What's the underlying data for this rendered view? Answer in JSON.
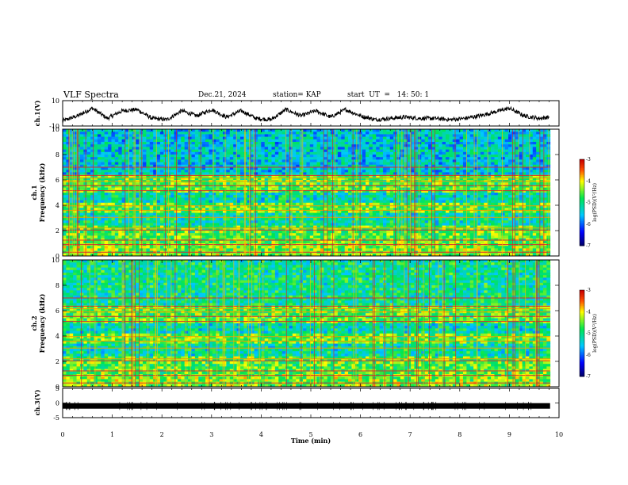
{
  "header": {
    "title": "VLF Spectra",
    "date": "Dec.21, 2024",
    "station": "station= KAP",
    "start_ut": "start  UT  =   14: 50: 1"
  },
  "chart_data": [
    {
      "type": "line",
      "name": "ch1-waveform",
      "ylabel": "ch.1(V)",
      "ylim": [
        -10,
        10
      ],
      "yticks": [
        "10",
        "-10"
      ],
      "xlim": [
        0,
        10
      ],
      "envelope": {
        "x": [
          0,
          0.3,
          0.6,
          0.9,
          1.2,
          1.5,
          1.8,
          2.1,
          2.4,
          2.7,
          3.0,
          3.3,
          3.6,
          3.9,
          4.2,
          4.5,
          4.8,
          5.1,
          5.4,
          5.7,
          6.0,
          6.3,
          6.6,
          6.9,
          7.2,
          7.5,
          7.8,
          8.1,
          8.4,
          8.7,
          9.0,
          9.3,
          9.6,
          9.8
        ],
        "y": [
          -6,
          -2,
          4,
          -4,
          2,
          3,
          -4,
          -5,
          2,
          -2,
          3,
          -3,
          2,
          -4,
          -5,
          3,
          -2,
          2,
          -3,
          3,
          -2,
          -5,
          -4,
          -3,
          -4,
          -4,
          -5,
          -4,
          -2,
          1,
          4,
          -2,
          -4,
          -3
        ]
      }
    },
    {
      "type": "heatmap",
      "name": "ch1-spectrogram",
      "ylabel": "ch.1\nFrequency (kHz)",
      "ylim": [
        0,
        10
      ],
      "yticks": [
        "0",
        "2",
        "4",
        "6",
        "8",
        "10"
      ],
      "xlim": [
        0,
        10
      ],
      "colorbar": {
        "label": "log(PSD)(V²/Hz)",
        "range": [
          -7,
          -3
        ],
        "ticks": [
          "-3",
          "-4",
          "-5",
          "-6",
          "-7"
        ]
      }
    },
    {
      "type": "heatmap",
      "name": "ch2-spectrogram",
      "ylabel": "ch.2\nFrequency (kHz)",
      "ylim": [
        0,
        10
      ],
      "yticks": [
        "0",
        "2",
        "4",
        "6",
        "8",
        "10"
      ],
      "xlim": [
        0,
        10
      ],
      "colorbar": {
        "label": "log(PSD)(V²/Hz)",
        "range": [
          -7,
          -3
        ],
        "ticks": [
          "-3",
          "-4",
          "-5",
          "-6",
          "-7"
        ]
      }
    },
    {
      "type": "line",
      "name": "ch3-waveform",
      "ylabel": "ch.3(V)",
      "ylim": [
        -5,
        5
      ],
      "yticks": [
        "5",
        "0",
        "-5"
      ],
      "xlim": [
        0,
        10
      ],
      "level": -1
    }
  ],
  "xaxis": {
    "label": "Time  (min)",
    "ticks": [
      "0",
      "1",
      "2",
      "3",
      "4",
      "5",
      "6",
      "7",
      "8",
      "9",
      "10"
    ]
  }
}
